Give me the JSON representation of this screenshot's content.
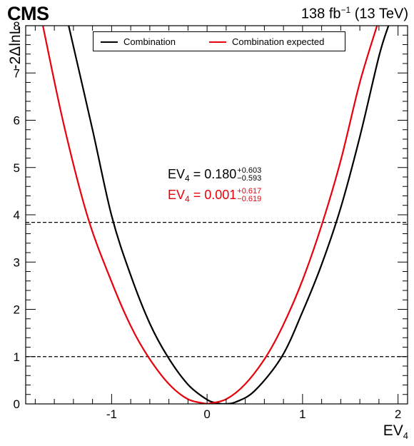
{
  "header": {
    "experiment": "CMS",
    "lumi_value": "138 fb",
    "lumi_exp": "−1",
    "lumi_energy": " (13 TeV)"
  },
  "annotations": {
    "observed": {
      "lhs": "EV",
      "sub": "4",
      "eq": " = 0.180",
      "up": "+0.603",
      "down": "−0.593"
    },
    "expected": {
      "lhs": "EV",
      "sub": "4",
      "eq": " = 0.001",
      "up": "+0.617",
      "down": "−0.619"
    }
  },
  "colors": {
    "observed": "#000000",
    "expected": "#e8000b"
  },
  "chart_data": {
    "type": "line",
    "xlabel_main": "EV",
    "xlabel_sub": "4",
    "ylabel": "-2ΔlnL",
    "xlim": [
      -1.9,
      2.1
    ],
    "ylim": [
      0,
      8
    ],
    "x_ticks": [
      -1,
      0,
      1,
      2
    ],
    "x_tick_labels": [
      "-1",
      "0",
      "1",
      "2"
    ],
    "y_ticks": [
      0,
      1,
      2,
      3,
      4,
      5,
      6,
      7,
      8
    ],
    "y_tick_labels": [
      "0",
      "1",
      "2",
      "3",
      "4",
      "5",
      "6",
      "7",
      "8"
    ],
    "reference_lines": [
      1.0,
      3.84
    ],
    "legend": {
      "position": "top",
      "entries": [
        "Combination",
        "Combination expected"
      ]
    },
    "series": [
      {
        "name": "Combination",
        "color": "#000000",
        "x": [
          -1.45,
          -1.2,
          -1.0,
          -0.8,
          -0.6,
          -0.413,
          -0.2,
          0.0,
          0.1,
          0.18,
          0.3,
          0.5,
          0.783,
          1.0,
          1.2,
          1.4,
          1.6,
          1.8,
          1.9
        ],
        "y": [
          8.0,
          5.8,
          3.98,
          2.72,
          1.7,
          1.0,
          0.41,
          0.09,
          0.02,
          0.0,
          0.04,
          0.28,
          1.0,
          1.95,
          2.95,
          4.15,
          5.65,
          7.35,
          8.0
        ]
      },
      {
        "name": "Combination expected",
        "color": "#e8000b",
        "x": [
          -1.72,
          -1.5,
          -1.25,
          -1.0,
          -0.8,
          -0.618,
          -0.4,
          -0.2,
          0.0,
          0.001,
          0.2,
          0.4,
          0.618,
          0.8,
          1.0,
          1.2,
          1.4,
          1.6,
          1.78
        ],
        "y": [
          8.0,
          5.9,
          3.95,
          2.58,
          1.65,
          1.0,
          0.42,
          0.1,
          0.0,
          0.0,
          0.1,
          0.42,
          1.0,
          1.68,
          2.62,
          3.78,
          5.15,
          6.8,
          8.0
        ]
      }
    ]
  }
}
